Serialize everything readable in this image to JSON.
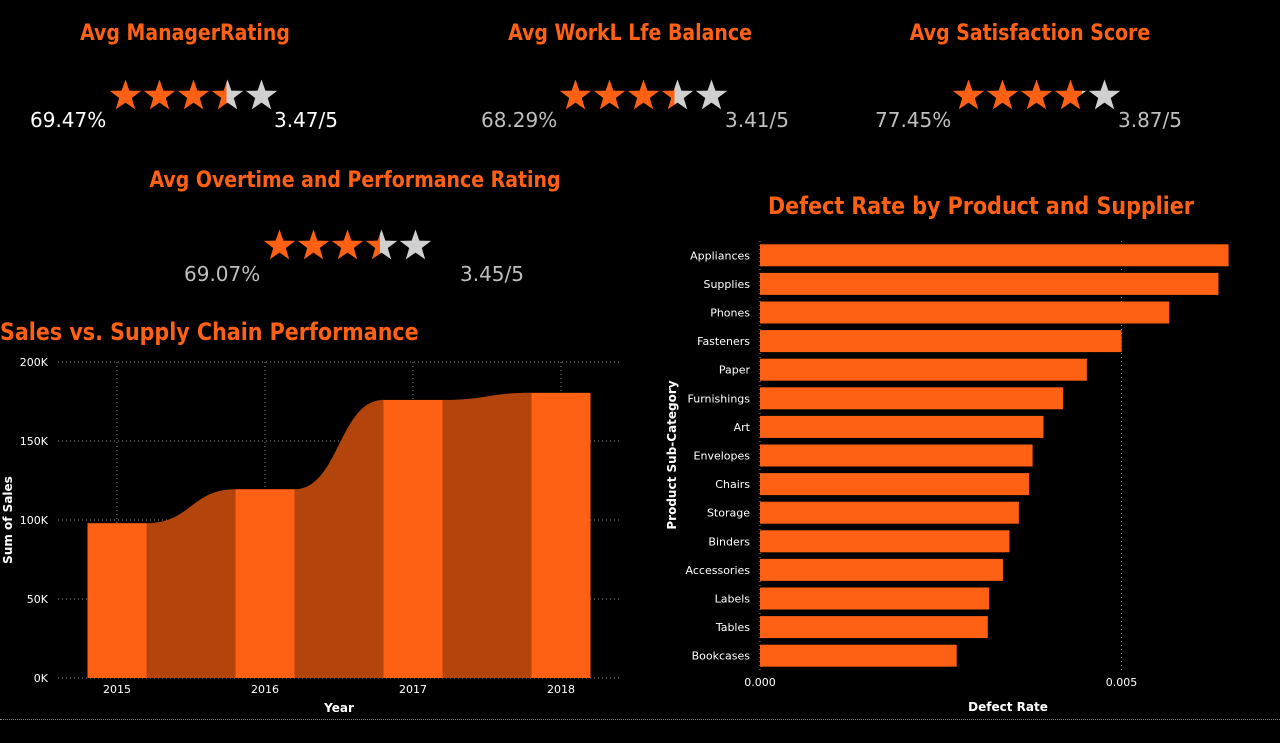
{
  "kpis": [
    {
      "title": "Avg ManagerRating",
      "percent": "69.47%",
      "score": "3.47/5",
      "rating": 3.47,
      "max": 5,
      "percent_color": "#ffffff",
      "score_color": "#ffffff"
    },
    {
      "title": "Avg WorkL Lfe Balance",
      "percent": "68.29%",
      "score": "3.41/5",
      "rating": 3.41,
      "max": 5,
      "percent_color": "#bfbfbf",
      "score_color": "#bfbfbf"
    },
    {
      "title": "Avg Satisfaction Score",
      "percent": "77.45%",
      "score": "3.87/5",
      "rating": 3.87,
      "max": 5,
      "percent_color": "#bfbfbf",
      "score_color": "#bfbfbf"
    },
    {
      "title": "Avg Overtime and Performance Rating",
      "percent": "69.07%",
      "score": "3.45/5",
      "rating": 3.45,
      "max": 5,
      "percent_color": "#bfbfbf",
      "score_color": "#bfbfbf"
    }
  ],
  "colors": {
    "accent": "#ff6114",
    "ribbon": "#b3440b",
    "star_empty": "#d0d0d0",
    "background": "#000000",
    "grid": "#8a8a8a"
  },
  "sales_chart": {
    "title": "Sales vs. Supply Chain Performance",
    "xlabel": "Year",
    "ylabel": "Sum of Sales",
    "y_ticks": [
      "0K",
      "50K",
      "100K",
      "150K",
      "200K"
    ],
    "y_tick_values": [
      0,
      50000,
      100000,
      150000,
      200000
    ],
    "categories": [
      "2015",
      "2016",
      "2017",
      "2018"
    ]
  },
  "defect_chart": {
    "title": "Defect Rate by Product and Supplier",
    "xlabel": "Defect Rate",
    "ylabel": "Product Sub-Category",
    "x_ticks": [
      "0.000",
      "0.005"
    ],
    "x_tick_values": [
      0,
      0.005
    ],
    "categories": [
      "Appliances",
      "Supplies",
      "Phones",
      "Fasteners",
      "Paper",
      "Furnishings",
      "Art",
      "Envelopes",
      "Chairs",
      "Storage",
      "Binders",
      "Accessories",
      "Labels",
      "Tables",
      "Bookcases"
    ]
  },
  "chart_data": [
    {
      "type": "bar",
      "subtype": "ribbon",
      "title": "Sales vs. Supply Chain Performance",
      "xlabel": "Year",
      "ylabel": "Sum of Sales",
      "categories": [
        "2015",
        "2016",
        "2017",
        "2018"
      ],
      "values": [
        98000,
        119500,
        176000,
        180500
      ],
      "ylim": [
        0,
        200000
      ],
      "grid": true
    },
    {
      "type": "bar",
      "orientation": "horizontal",
      "title": "Defect Rate by Product and Supplier",
      "xlabel": "Defect Rate",
      "ylabel": "Product Sub-Category",
      "categories": [
        "Appliances",
        "Supplies",
        "Phones",
        "Fasteners",
        "Paper",
        "Furnishings",
        "Art",
        "Envelopes",
        "Chairs",
        "Storage",
        "Binders",
        "Accessories",
        "Labels",
        "Tables",
        "Bookcases"
      ],
      "values": [
        0.00648,
        0.00634,
        0.00566,
        0.005,
        0.00452,
        0.00419,
        0.00392,
        0.00377,
        0.00372,
        0.00358,
        0.00345,
        0.00336,
        0.00317,
        0.00315,
        0.00272
      ],
      "xlim": [
        0,
        0.0065
      ],
      "grid": true
    }
  ]
}
